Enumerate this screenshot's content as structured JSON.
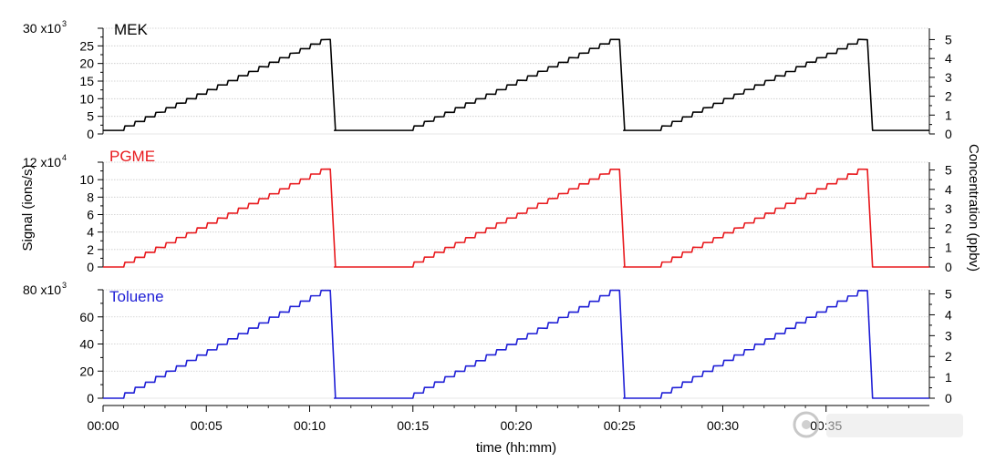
{
  "chart_data": {
    "type": "line",
    "x_axis": {
      "label": "time (hh:mm)",
      "range_minutes": [
        0,
        40
      ],
      "tick_values_minutes": [
        0,
        5,
        10,
        15,
        20,
        25,
        30,
        35
      ],
      "tick_labels": [
        "00:00",
        "00:05",
        "00:10",
        "00:15",
        "00:20",
        "00:25",
        "00:30",
        "00:35"
      ]
    },
    "left_axis_label": "Signal (ions/s)",
    "right_axis_label": "Concentration (ppbv)",
    "grid": true,
    "cycles_start_minutes": [
      0,
      14,
      26
    ],
    "cycle_profile": {
      "baseline_until_min": 1.0,
      "step_interval_min": 0.5,
      "steps": 20,
      "peak_end_min": 11.2,
      "concentration_end_ppbv": 5
    },
    "panels": [
      {
        "name": "MEK",
        "color": "#000000",
        "signal_scale_label": "x10",
        "signal_scale_exponent": "3",
        "signal_ticks": [
          0,
          5,
          10,
          15,
          20,
          25,
          30
        ],
        "signal_tick_labels": [
          "0",
          "5",
          "10",
          "15",
          "20",
          "25",
          "30"
        ],
        "signal_range": [
          0,
          30
        ],
        "baseline": 1,
        "peak": 26.8,
        "conc_ticks": [
          0,
          1,
          2,
          3,
          4,
          5
        ],
        "conc_tick_labels": [
          "0",
          "1",
          "2",
          "3",
          "4",
          "5"
        ],
        "conc_range": [
          0,
          5.6
        ]
      },
      {
        "name": "PGME",
        "color": "#e8191d",
        "signal_scale_label": "x10",
        "signal_scale_exponent": "4",
        "signal_ticks": [
          0,
          2,
          4,
          6,
          8,
          10,
          12
        ],
        "signal_tick_labels": [
          "0",
          "2",
          "4",
          "6",
          "8",
          "10",
          "12"
        ],
        "signal_range": [
          0,
          12
        ],
        "baseline": 0,
        "peak": 11.2,
        "conc_ticks": [
          0,
          1,
          2,
          3,
          4,
          5
        ],
        "conc_tick_labels": [
          "0",
          "1",
          "2",
          "3",
          "4",
          "5"
        ],
        "conc_range": [
          0,
          5.4
        ]
      },
      {
        "name": "Toluene",
        "color": "#1f1fd6",
        "signal_scale_label": "x10",
        "signal_scale_exponent": "3",
        "signal_ticks": [
          0,
          20,
          40,
          60,
          80
        ],
        "signal_tick_labels": [
          "0",
          "20",
          "40",
          "60",
          "80"
        ],
        "signal_range": [
          0,
          80
        ],
        "baseline": 0,
        "peak": 79.5,
        "conc_ticks": [
          0,
          1,
          2,
          3,
          4,
          5
        ],
        "conc_tick_labels": [
          "0",
          "1",
          "2",
          "3",
          "4",
          "5"
        ],
        "conc_range": [
          0,
          5.2
        ]
      }
    ]
  }
}
